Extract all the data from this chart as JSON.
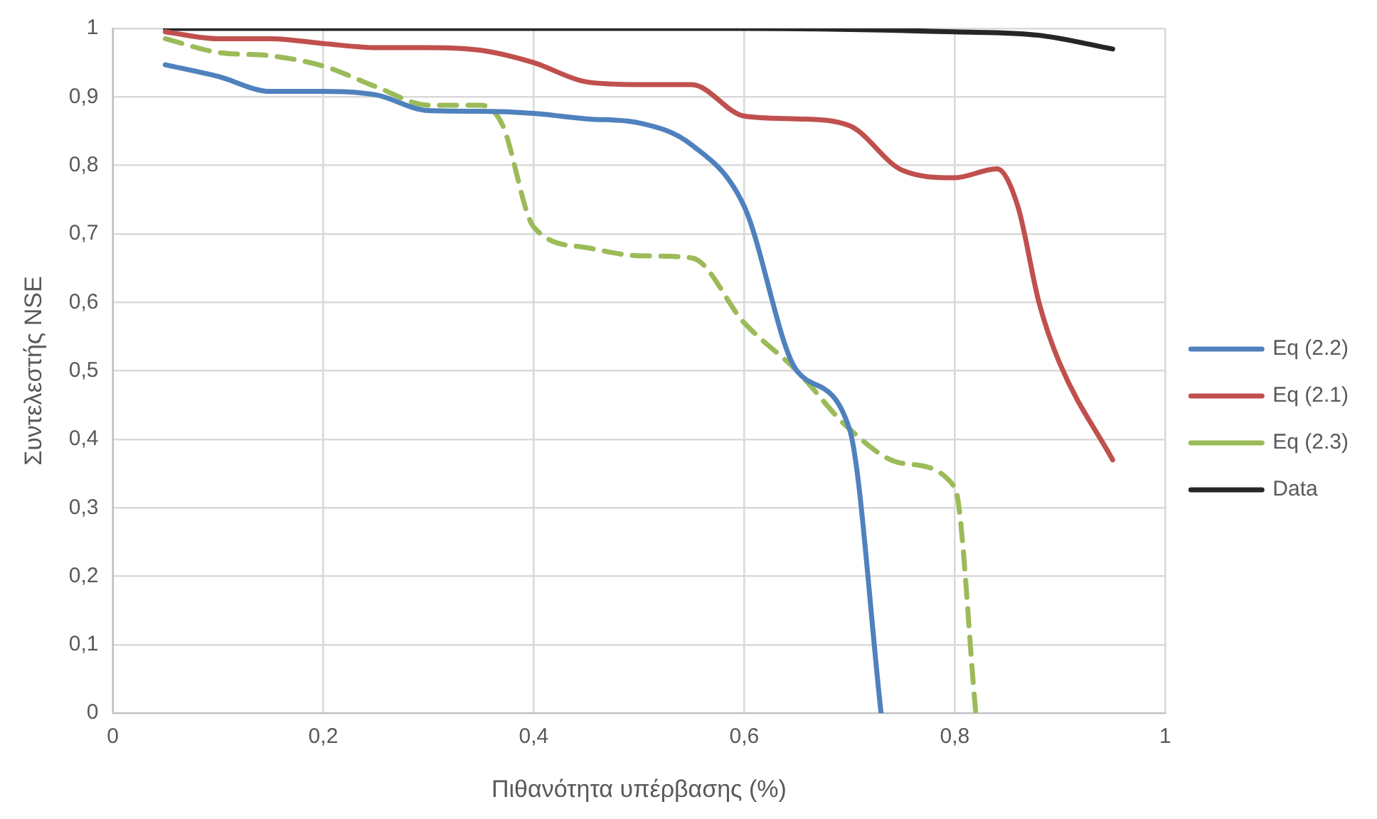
{
  "chart_data": {
    "type": "line",
    "xlabel": "Πιθανότητα υπέρβασης (%)",
    "ylabel": "Συντελεστής NSE",
    "x": [
      0.05,
      0.1,
      0.15,
      0.2,
      0.25,
      0.3,
      0.35,
      0.4,
      0.45,
      0.5,
      0.55,
      0.6,
      0.65,
      0.7,
      0.73
    ],
    "series": [
      {
        "name": "Eq (2.2)",
        "color": "#4f81bd",
        "line_style": "solid",
        "values": [
          0.947,
          0.93,
          0.908,
          0.908,
          0.903,
          0.88,
          0.879,
          0.876,
          0.868,
          0.862,
          0.83,
          0.74,
          0.5,
          0.415,
          0
        ]
      },
      {
        "name": "Eq (2.1)",
        "color": "#c0504d",
        "line_style": "solid",
        "x": [
          0.05,
          0.1,
          0.15,
          0.2,
          0.25,
          0.3,
          0.35,
          0.4,
          0.45,
          0.5,
          0.55,
          0.6,
          0.65,
          0.7,
          0.75,
          0.8,
          0.84,
          0.86,
          0.88,
          0.9,
          0.95
        ],
        "values": [
          0.995,
          0.985,
          0.985,
          0.978,
          0.972,
          0.972,
          0.968,
          0.95,
          0.922,
          0.918,
          0.918,
          0.872,
          0.868,
          0.858,
          0.793,
          0.782,
          0.795,
          0.74,
          0.6,
          0.51,
          0.37
        ]
      },
      {
        "name": "Eq (2.3)",
        "color": "#9bbb59",
        "line_style": "dashed",
        "x": [
          0.05,
          0.1,
          0.15,
          0.2,
          0.25,
          0.3,
          0.35,
          0.37,
          0.4,
          0.45,
          0.5,
          0.55,
          0.6,
          0.65,
          0.7,
          0.75,
          0.8,
          0.82
        ],
        "values": [
          0.985,
          0.965,
          0.96,
          0.945,
          0.915,
          0.888,
          0.888,
          0.86,
          0.71,
          0.68,
          0.668,
          0.665,
          0.57,
          0.5,
          0.415,
          0.365,
          0.33,
          0
        ]
      },
      {
        "name": "Data",
        "color": "#262626",
        "line_style": "solid",
        "x": [
          0.05,
          0.3,
          0.6,
          0.8,
          0.88,
          0.95
        ],
        "values": [
          1,
          1,
          1,
          0.995,
          0.99,
          0.97
        ]
      }
    ],
    "xlim": [
      0,
      1
    ],
    "ylim": [
      0,
      1
    ],
    "xticks": [
      0,
      {
        "value": 0.2,
        "label": "0,2"
      },
      {
        "value": 0.4,
        "label": "0,4"
      },
      {
        "value": 0.6,
        "label": "0,6"
      },
      {
        "value": 0.8,
        "label": "0,8"
      },
      1
    ],
    "yticks": [
      0,
      {
        "value": 0.1,
        "label": "0,1"
      },
      {
        "value": 0.2,
        "label": "0,2"
      },
      {
        "value": 0.3,
        "label": "0,3"
      },
      {
        "value": 0.4,
        "label": "0,4"
      },
      {
        "value": 0.5,
        "label": "0,5"
      },
      {
        "value": 0.6,
        "label": "0,6"
      },
      {
        "value": 0.7,
        "label": "0,7"
      },
      {
        "value": 0.8,
        "label": "0,8"
      },
      {
        "value": 0.9,
        "label": "0,9"
      },
      1
    ],
    "grid": true,
    "legend": "right",
    "marker": "none"
  }
}
